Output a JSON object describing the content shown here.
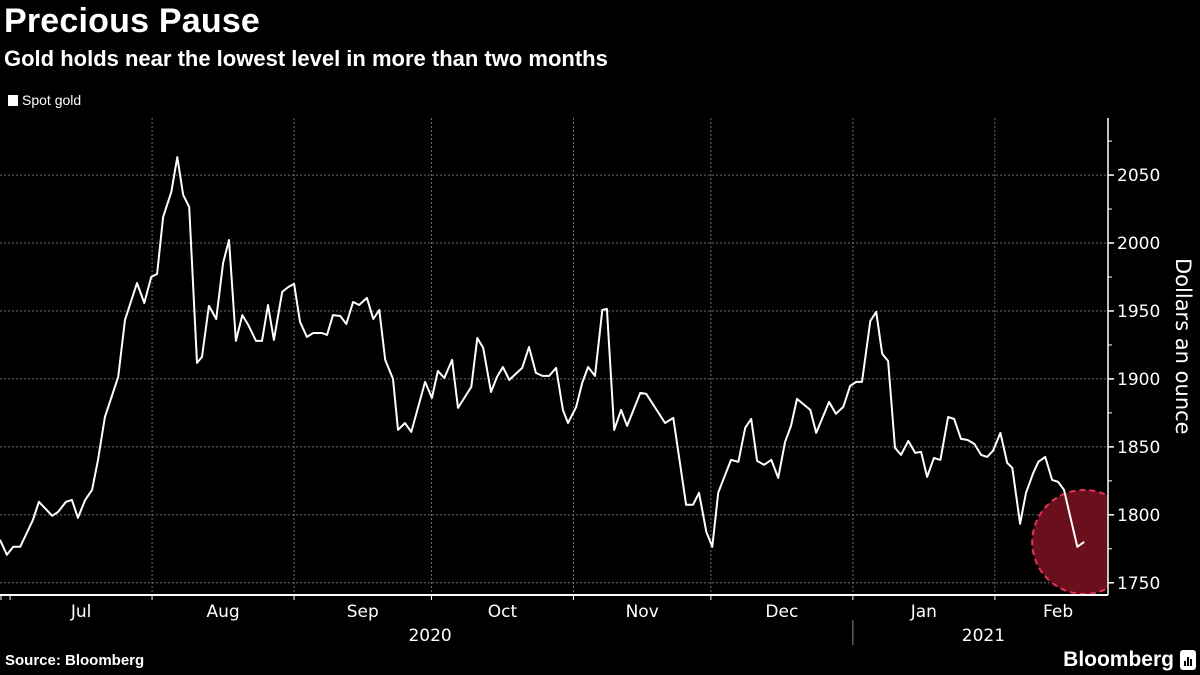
{
  "header": {
    "title": "Precious Pause",
    "subtitle": "Gold holds near the lowest level in more than two months"
  },
  "footer": {
    "source": "Source: Bloomberg",
    "logo": "Bloomberg"
  },
  "colors": {
    "background": "#000000",
    "line": "#ffffff",
    "highlight_line": "#f7b3c2",
    "highlight_fill": "#6a0f1c",
    "highlight_border": "#e8305a",
    "grid": "#6e6e6e"
  },
  "chart_data": {
    "type": "line",
    "title": "Precious Pause",
    "subtitle": "Gold holds near the lowest level in more than two months",
    "xlabel": "",
    "ylabel": "Dollars an ounce",
    "x_units": "days since 2020-07-01",
    "xlim": [
      -2.2,
      239.7
    ],
    "ylim": [
      1741,
      2092
    ],
    "grid": true,
    "legend": {
      "position": "top-left",
      "entries": [
        "Spot gold"
      ]
    },
    "y_ticks": [
      1750,
      1800,
      1850,
      1900,
      1950,
      2000,
      2050
    ],
    "y_tick_labels": [
      "1750",
      "1800",
      "1850",
      "1900",
      "1950",
      "2000",
      "2050"
    ],
    "month_boundaries": [
      0,
      31,
      62,
      92,
      123,
      153,
      184,
      215
    ],
    "month_labels": [
      {
        "label": "Jul",
        "day": 15.5
      },
      {
        "label": "Aug",
        "day": 46.5
      },
      {
        "label": "Sep",
        "day": 77
      },
      {
        "label": "Oct",
        "day": 107.5
      },
      {
        "label": "Nov",
        "day": 138
      },
      {
        "label": "Dec",
        "day": 168.5
      },
      {
        "label": "Jan",
        "day": 199.5
      },
      {
        "label": "Feb",
        "day": 228.8
      }
    ],
    "year_labels": [
      {
        "label": "2020",
        "day": 91.7
      },
      {
        "label": "2021",
        "day": 212.5
      }
    ],
    "year_divider_day": 184,
    "series": [
      {
        "name": "Spot gold",
        "highlight_from_index": 164,
        "points": [
          [
            -2.2,
            1781.6
          ],
          [
            -0.7,
            1770.6
          ],
          [
            0.7,
            1776.5
          ],
          [
            2.2,
            1776.5
          ],
          [
            5,
            1796.3
          ],
          [
            6.3,
            1809.6
          ],
          [
            9.2,
            1799.3
          ],
          [
            10.5,
            1802.2
          ],
          [
            12.2,
            1809.6
          ],
          [
            13.5,
            1811
          ],
          [
            14.8,
            1797.8
          ],
          [
            16.4,
            1811
          ],
          [
            17.9,
            1818.4
          ],
          [
            19.2,
            1840.4
          ],
          [
            20.7,
            1872
          ],
          [
            23.6,
            1901.5
          ],
          [
            25.1,
            1943.4
          ],
          [
            27.7,
            1970.6
          ],
          [
            29.3,
            1955.9
          ],
          [
            30.8,
            1975
          ],
          [
            32.1,
            1977.2
          ],
          [
            33.4,
            2019.1
          ],
          [
            35.2,
            2037.5
          ],
          [
            36.5,
            2063.2
          ],
          [
            37.8,
            2035.3
          ],
          [
            39.1,
            2026.5
          ],
          [
            40.8,
            1911.8
          ],
          [
            41.9,
            1916.2
          ],
          [
            43.4,
            1953.7
          ],
          [
            45,
            1944.1
          ],
          [
            46.5,
            1985.3
          ],
          [
            47.8,
            2002.2
          ],
          [
            49.3,
            1928
          ],
          [
            50.7,
            1947
          ],
          [
            52,
            1939.7
          ],
          [
            53.7,
            1928
          ],
          [
            55,
            1928
          ],
          [
            56.3,
            1954.4
          ],
          [
            57.6,
            1928.7
          ],
          [
            59.4,
            1964
          ],
          [
            60.7,
            1967.6
          ],
          [
            62,
            1969.9
          ],
          [
            63.3,
            1942
          ],
          [
            64.8,
            1930.9
          ],
          [
            66.2,
            1933.8
          ],
          [
            68.1,
            1933.8
          ],
          [
            69.2,
            1932.4
          ],
          [
            70.5,
            1947
          ],
          [
            72.1,
            1946.3
          ],
          [
            73.4,
            1940.4
          ],
          [
            74.9,
            1956.6
          ],
          [
            76.2,
            1954.4
          ],
          [
            77.9,
            1959.6
          ],
          [
            79.3,
            1944.1
          ],
          [
            80.6,
            1950.7
          ],
          [
            81.9,
            1914
          ],
          [
            83.6,
            1900
          ],
          [
            84.7,
            1862.5
          ],
          [
            86.2,
            1867.6
          ],
          [
            87.6,
            1861
          ],
          [
            90.6,
            1897.8
          ],
          [
            92.1,
            1886
          ],
          [
            93.4,
            1905.9
          ],
          [
            94.8,
            1900.7
          ],
          [
            96.5,
            1914
          ],
          [
            97.8,
            1878.7
          ],
          [
            100.7,
            1894.1
          ],
          [
            102,
            1930.1
          ],
          [
            103.3,
            1922.8
          ],
          [
            105,
            1890.4
          ],
          [
            106.3,
            1901.5
          ],
          [
            107.6,
            1908.8
          ],
          [
            109,
            1899.3
          ],
          [
            111.8,
            1908.1
          ],
          [
            113.3,
            1923.5
          ],
          [
            114.8,
            1904.4
          ],
          [
            116.2,
            1902.2
          ],
          [
            117.7,
            1902.2
          ],
          [
            119.2,
            1908.1
          ],
          [
            120.7,
            1877.2
          ],
          [
            121.8,
            1867.6
          ],
          [
            123.6,
            1879.4
          ],
          [
            124.9,
            1897.1
          ],
          [
            126.2,
            1908.8
          ],
          [
            127.7,
            1902.2
          ],
          [
            129.3,
            1950.7
          ],
          [
            130.3,
            1951.5
          ],
          [
            131.9,
            1862.5
          ],
          [
            133.4,
            1877.2
          ],
          [
            134.7,
            1865.4
          ],
          [
            137.6,
            1889.7
          ],
          [
            138.9,
            1889
          ],
          [
            143,
            1867.6
          ],
          [
            144.8,
            1871.3
          ],
          [
            147.6,
            1807.4
          ],
          [
            149.1,
            1807.4
          ],
          [
            150.4,
            1816.2
          ],
          [
            152,
            1787.5
          ],
          [
            153.3,
            1776.5
          ],
          [
            154.6,
            1816.2
          ],
          [
            157.4,
            1840.4
          ],
          [
            159,
            1839
          ],
          [
            160.5,
            1864
          ],
          [
            161.8,
            1870.6
          ],
          [
            163.1,
            1839.7
          ],
          [
            164.6,
            1836.8
          ],
          [
            166.2,
            1840.4
          ],
          [
            167.7,
            1827.2
          ],
          [
            169.2,
            1853.7
          ],
          [
            170.5,
            1865.4
          ],
          [
            171.8,
            1885.3
          ],
          [
            174.7,
            1877.2
          ],
          [
            176,
            1860.3
          ],
          [
            178.8,
            1883.1
          ],
          [
            180.3,
            1874.3
          ],
          [
            181.9,
            1879.4
          ],
          [
            183.4,
            1894.9
          ],
          [
            184.7,
            1897.8
          ],
          [
            186,
            1897.8
          ],
          [
            187.8,
            1942.6
          ],
          [
            189.1,
            1949.3
          ],
          [
            190.4,
            1918.4
          ],
          [
            191.7,
            1913.2
          ],
          [
            193.2,
            1849.3
          ],
          [
            194.5,
            1844.1
          ],
          [
            196.1,
            1854.4
          ],
          [
            197.6,
            1845.6
          ],
          [
            198.9,
            1846.3
          ],
          [
            200.2,
            1827.9
          ],
          [
            201.7,
            1841.9
          ],
          [
            203.1,
            1840.4
          ],
          [
            204.8,
            1872
          ],
          [
            206.1,
            1870.6
          ],
          [
            207.6,
            1855.9
          ],
          [
            209,
            1855.1
          ],
          [
            210.5,
            1852.2
          ],
          [
            212,
            1844.1
          ],
          [
            213.3,
            1842.6
          ],
          [
            214.6,
            1847.1
          ],
          [
            216.2,
            1860.3
          ],
          [
            217.7,
            1838.2
          ],
          [
            218.8,
            1834.6
          ],
          [
            220.5,
            1793.4
          ],
          [
            221.8,
            1816.2
          ],
          [
            223.4,
            1830.9
          ],
          [
            224.5,
            1839
          ],
          [
            226,
            1842.6
          ],
          [
            227.5,
            1825.7
          ],
          [
            228.8,
            1824.3
          ],
          [
            230.1,
            1818.4
          ],
          [
            233,
            1776.5
          ],
          [
            234.5,
            1780.1
          ]
        ]
      }
    ],
    "annotation": {
      "type": "circle-highlight",
      "day": 234.5,
      "value": 1780
    }
  }
}
